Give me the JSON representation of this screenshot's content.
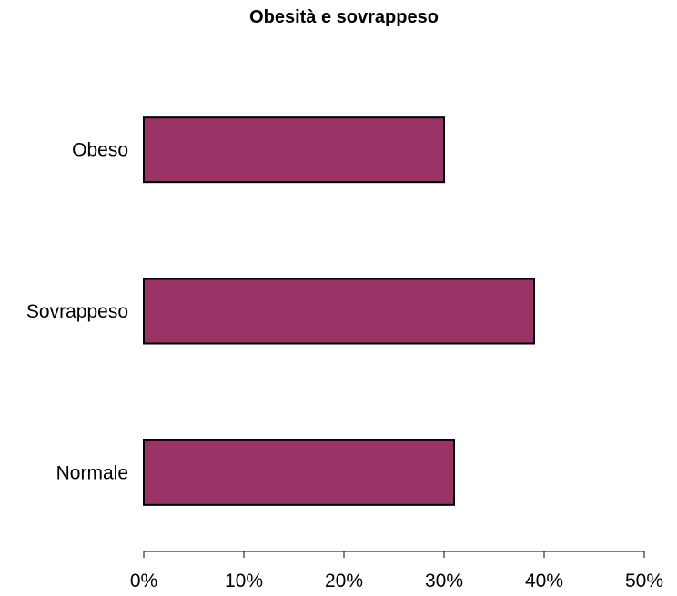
{
  "chart_data": {
    "type": "bar",
    "orientation": "horizontal",
    "title": "Obesità e sovrappeso",
    "xlabel": "",
    "ylabel": "",
    "categories": [
      "Normale",
      "Sovrappeso",
      "Obeso"
    ],
    "values": [
      31,
      39,
      30
    ],
    "value_unit": "%",
    "xlim": [
      0,
      50
    ],
    "x_ticks": [
      0,
      10,
      20,
      30,
      40,
      50
    ],
    "x_tick_labels": [
      "0%",
      "10%",
      "20%",
      "30%",
      "40%",
      "50%"
    ],
    "grid": false,
    "legend": "none",
    "bar_color": "#993366",
    "bar_border_color": "#000000"
  }
}
